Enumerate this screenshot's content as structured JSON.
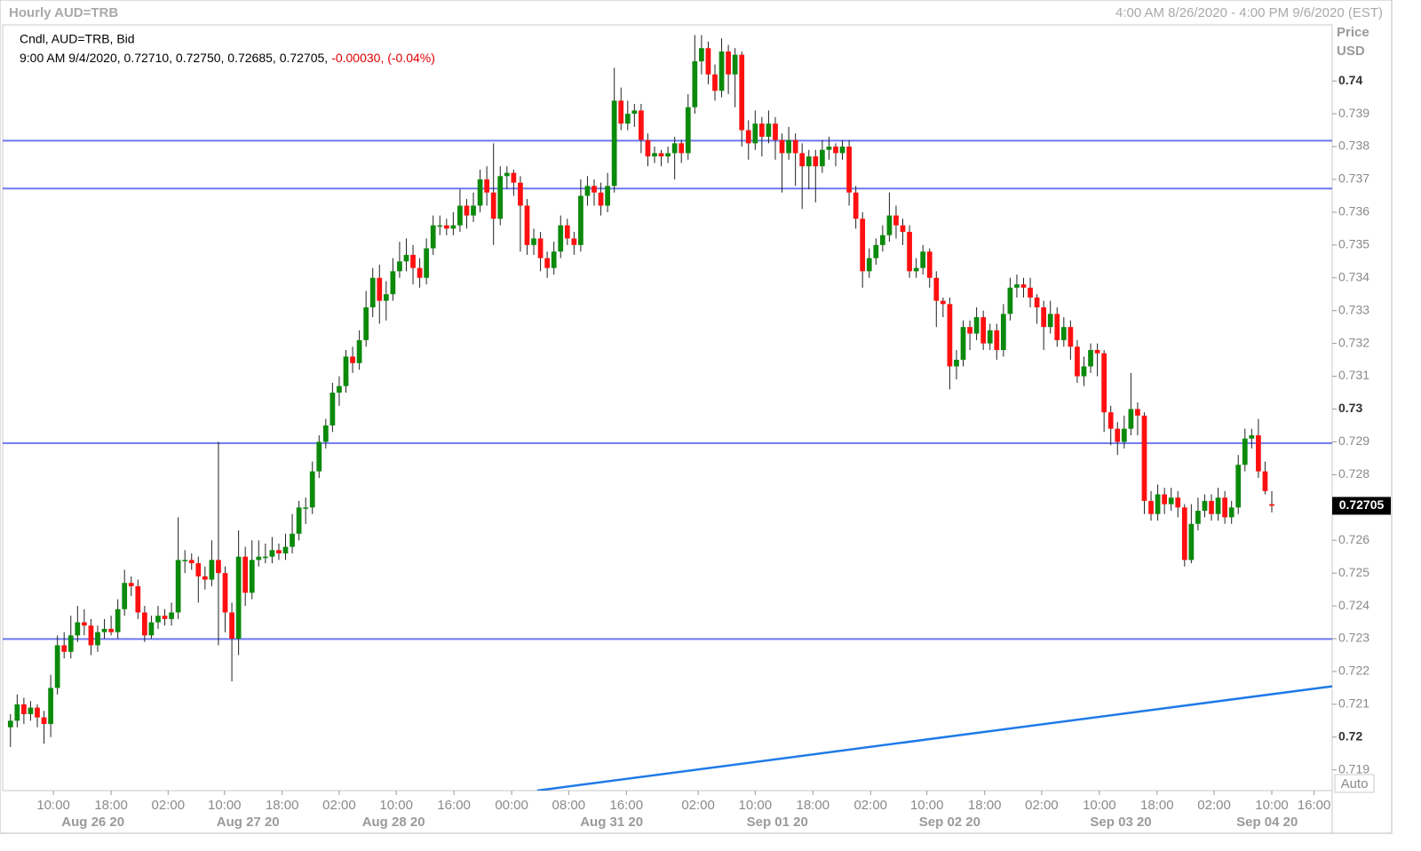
{
  "chart_data": {
    "type": "candlestick",
    "title": "Hourly AUD=TRB",
    "subtitle": "4:00 AM 8/26/2020 - 4:00 PM 9/6/2020 (EST)",
    "legend_title": "Cndl, AUD=TRB, Bid",
    "info": "9:00 AM 9/4/2020, 0.72710, 0.72750, 0.72685, 0.72705,",
    "change": "-0.00030, (-0.04%)",
    "y_axis_label": "Price",
    "y_axis_unit": "USD",
    "scale_mode": "Auto",
    "last_price": 0.72705,
    "up_color": "#0b8a0b",
    "down_color": "#ff1010",
    "wick_color": "#222222",
    "level_color": "#6e78f0",
    "trend_color": "#1f7ae8",
    "xlim": [
      -0.5,
      197
    ],
    "ylim": [
      0.71837,
      0.74171
    ],
    "yticks": [
      0.719,
      0.72,
      0.721,
      0.722,
      0.723,
      0.724,
      0.725,
      0.726,
      0.727,
      0.728,
      0.729,
      0.73,
      0.731,
      0.732,
      0.733,
      0.734,
      0.735,
      0.736,
      0.737,
      0.738,
      0.739,
      0.74
    ],
    "xticks": [
      {
        "value": 6.4,
        "label": "10:00"
      },
      {
        "value": 15,
        "label": "18:00"
      },
      {
        "value": 23.5,
        "label": "02:00"
      },
      {
        "value": 31.9,
        "label": "10:00"
      },
      {
        "value": 40.5,
        "label": "18:00"
      },
      {
        "value": 49,
        "label": "02:00"
      },
      {
        "value": 57.5,
        "label": "10:00"
      },
      {
        "value": 66.1,
        "label": "16:00"
      },
      {
        "value": 74.7,
        "label": "00:00"
      },
      {
        "value": 83.2,
        "label": "08:00"
      },
      {
        "value": 91.8,
        "label": "16:00"
      },
      {
        "value": 102.5,
        "label": "02:00"
      },
      {
        "value": 111,
        "label": "10:00"
      },
      {
        "value": 119.6,
        "label": "18:00"
      },
      {
        "value": 128.2,
        "label": "02:00"
      },
      {
        "value": 136.6,
        "label": "10:00"
      },
      {
        "value": 145.2,
        "label": "18:00"
      },
      {
        "value": 153.7,
        "label": "02:00"
      },
      {
        "value": 162.3,
        "label": "10:00"
      },
      {
        "value": 170.9,
        "label": "18:00"
      },
      {
        "value": 179.4,
        "label": "02:00"
      },
      {
        "value": 188,
        "label": "10:00"
      },
      {
        "value": 194.3,
        "label": "16:00"
      }
    ],
    "date_ticks": [
      {
        "value": 12.3,
        "label": "Aug 26 20"
      },
      {
        "value": 35.4,
        "label": "Aug 27 20"
      },
      {
        "value": 57.1,
        "label": "Aug 28 20"
      },
      {
        "value": 89.6,
        "label": "Aug 31 20"
      },
      {
        "value": 114.3,
        "label": "Sep 01 20"
      },
      {
        "value": 140,
        "label": "Sep 02 20"
      },
      {
        "value": 165.5,
        "label": "Sep 03 20"
      },
      {
        "value": 187.3,
        "label": "Sep 04 20"
      }
    ],
    "levels": [
      0.73818,
      0.73672,
      0.72896,
      0.72299
    ],
    "trendline": {
      "x": [
        78.5,
        197
      ],
      "y": [
        0.71837,
        0.72155
      ]
    },
    "ohlc": [
      [
        0.7203,
        0.7207,
        0.7197,
        0.7205
      ],
      [
        0.7205,
        0.7213,
        0.7203,
        0.721
      ],
      [
        0.721,
        0.7212,
        0.7204,
        0.7207
      ],
      [
        0.7207,
        0.7211,
        0.7205,
        0.7209
      ],
      [
        0.7209,
        0.721,
        0.7203,
        0.7206
      ],
      [
        0.7206,
        0.7208,
        0.7198,
        0.7204
      ],
      [
        0.7204,
        0.7219,
        0.72,
        0.7215
      ],
      [
        0.7215,
        0.7231,
        0.7213,
        0.7228
      ],
      [
        0.7228,
        0.7232,
        0.7224,
        0.7226
      ],
      [
        0.7226,
        0.7237,
        0.7224,
        0.7231
      ],
      [
        0.7231,
        0.724,
        0.7229,
        0.7235
      ],
      [
        0.7235,
        0.7239,
        0.7231,
        0.7234
      ],
      [
        0.7234,
        0.7236,
        0.7225,
        0.7228
      ],
      [
        0.7228,
        0.7234,
        0.7226,
        0.7232
      ],
      [
        0.7232,
        0.7236,
        0.723,
        0.7233
      ],
      [
        0.7233,
        0.7237,
        0.7231,
        0.7232
      ],
      [
        0.7232,
        0.7242,
        0.723,
        0.7239
      ],
      [
        0.7239,
        0.7251,
        0.7237,
        0.7247
      ],
      [
        0.7247,
        0.7249,
        0.7243,
        0.7246
      ],
      [
        0.7246,
        0.7248,
        0.7236,
        0.7238
      ],
      [
        0.7238,
        0.724,
        0.7229,
        0.7231
      ],
      [
        0.7231,
        0.7237,
        0.723,
        0.7235
      ],
      [
        0.7235,
        0.724,
        0.7233,
        0.7237
      ],
      [
        0.7237,
        0.7239,
        0.7234,
        0.7236
      ],
      [
        0.7236,
        0.7241,
        0.7234,
        0.7238
      ],
      [
        0.7238,
        0.7267,
        0.7236,
        0.7254
      ],
      [
        0.7254,
        0.7257,
        0.725,
        0.7254
      ],
      [
        0.7254,
        0.7256,
        0.7251,
        0.7253
      ],
      [
        0.7253,
        0.7255,
        0.7241,
        0.7249
      ],
      [
        0.7249,
        0.7252,
        0.7245,
        0.7248
      ],
      [
        0.7248,
        0.726,
        0.7246,
        0.7254
      ],
      [
        0.7254,
        0.729,
        0.7228,
        0.725
      ],
      [
        0.725,
        0.7252,
        0.7232,
        0.7238
      ],
      [
        0.7238,
        0.7241,
        0.7217,
        0.723
      ],
      [
        0.723,
        0.7263,
        0.7225,
        0.7255
      ],
      [
        0.7255,
        0.7258,
        0.724,
        0.7244
      ],
      [
        0.7244,
        0.726,
        0.7242,
        0.7254
      ],
      [
        0.7254,
        0.726,
        0.7252,
        0.7255
      ],
      [
        0.7255,
        0.7259,
        0.7253,
        0.7255
      ],
      [
        0.7255,
        0.7261,
        0.7253,
        0.7257
      ],
      [
        0.7257,
        0.7259,
        0.7254,
        0.7256
      ],
      [
        0.7256,
        0.7262,
        0.7254,
        0.7258
      ],
      [
        0.7258,
        0.7268,
        0.7256,
        0.7262
      ],
      [
        0.7262,
        0.7272,
        0.726,
        0.727
      ],
      [
        0.727,
        0.7273,
        0.7265,
        0.727
      ],
      [
        0.727,
        0.7284,
        0.7268,
        0.7281
      ],
      [
        0.7281,
        0.7292,
        0.7279,
        0.729
      ],
      [
        0.729,
        0.7297,
        0.7288,
        0.7295
      ],
      [
        0.7295,
        0.7308,
        0.7293,
        0.7305
      ],
      [
        0.7305,
        0.731,
        0.7301,
        0.7307
      ],
      [
        0.7307,
        0.7318,
        0.7305,
        0.7316
      ],
      [
        0.7316,
        0.7319,
        0.7311,
        0.7314
      ],
      [
        0.7314,
        0.7324,
        0.7312,
        0.7321
      ],
      [
        0.7321,
        0.7336,
        0.7319,
        0.7331
      ],
      [
        0.7331,
        0.7343,
        0.7328,
        0.734
      ],
      [
        0.734,
        0.7344,
        0.7326,
        0.7333
      ],
      [
        0.7333,
        0.7339,
        0.7327,
        0.7335
      ],
      [
        0.7335,
        0.7346,
        0.7333,
        0.7342
      ],
      [
        0.7342,
        0.7351,
        0.734,
        0.7345
      ],
      [
        0.7345,
        0.7352,
        0.7342,
        0.7347
      ],
      [
        0.7347,
        0.735,
        0.7338,
        0.7343
      ],
      [
        0.7343,
        0.7346,
        0.7337,
        0.734
      ],
      [
        0.734,
        0.7352,
        0.7338,
        0.7349
      ],
      [
        0.7349,
        0.7359,
        0.7347,
        0.7356
      ],
      [
        0.7356,
        0.7359,
        0.7353,
        0.7356
      ],
      [
        0.7356,
        0.7358,
        0.7353,
        0.7355
      ],
      [
        0.7355,
        0.736,
        0.7353,
        0.7356
      ],
      [
        0.7356,
        0.7367,
        0.7354,
        0.7362
      ],
      [
        0.7362,
        0.7364,
        0.7355,
        0.7359
      ],
      [
        0.7359,
        0.7366,
        0.7357,
        0.7362
      ],
      [
        0.7362,
        0.7373,
        0.736,
        0.737
      ],
      [
        0.737,
        0.7374,
        0.7362,
        0.7366
      ],
      [
        0.7366,
        0.7381,
        0.735,
        0.7358
      ],
      [
        0.7358,
        0.7374,
        0.7356,
        0.7371
      ],
      [
        0.7371,
        0.7374,
        0.7367,
        0.7372
      ],
      [
        0.7372,
        0.7373,
        0.7365,
        0.7369
      ],
      [
        0.7369,
        0.7371,
        0.7348,
        0.7362
      ],
      [
        0.7362,
        0.7364,
        0.7347,
        0.735
      ],
      [
        0.735,
        0.7355,
        0.7347,
        0.7352
      ],
      [
        0.7352,
        0.7354,
        0.7342,
        0.7346
      ],
      [
        0.7346,
        0.7348,
        0.734,
        0.7343
      ],
      [
        0.7343,
        0.7351,
        0.7341,
        0.7348
      ],
      [
        0.7348,
        0.7359,
        0.7346,
        0.7356
      ],
      [
        0.7356,
        0.7358,
        0.735,
        0.7352
      ],
      [
        0.7352,
        0.7354,
        0.7347,
        0.735
      ],
      [
        0.735,
        0.737,
        0.7348,
        0.7365
      ],
      [
        0.7365,
        0.7371,
        0.7362,
        0.7368
      ],
      [
        0.7368,
        0.737,
        0.7362,
        0.7366
      ],
      [
        0.7366,
        0.7369,
        0.7359,
        0.7362
      ],
      [
        0.7362,
        0.7372,
        0.736,
        0.7368
      ],
      [
        0.7368,
        0.7404,
        0.7366,
        0.7394
      ],
      [
        0.7394,
        0.7398,
        0.7385,
        0.7387
      ],
      [
        0.7387,
        0.7394,
        0.7385,
        0.739
      ],
      [
        0.739,
        0.7393,
        0.7386,
        0.7391
      ],
      [
        0.7391,
        0.7393,
        0.7378,
        0.7382
      ],
      [
        0.7382,
        0.7384,
        0.7374,
        0.7377
      ],
      [
        0.7377,
        0.738,
        0.7375,
        0.7378
      ],
      [
        0.7378,
        0.7379,
        0.7374,
        0.7377
      ],
      [
        0.7377,
        0.738,
        0.7375,
        0.7378
      ],
      [
        0.7378,
        0.7383,
        0.737,
        0.7381
      ],
      [
        0.7381,
        0.7382,
        0.7375,
        0.7378
      ],
      [
        0.7378,
        0.7396,
        0.7376,
        0.7392
      ],
      [
        0.7392,
        0.7414,
        0.739,
        0.7406
      ],
      [
        0.7406,
        0.7414,
        0.7402,
        0.741
      ],
      [
        0.741,
        0.7412,
        0.7399,
        0.7402
      ],
      [
        0.7402,
        0.7405,
        0.7394,
        0.7397
      ],
      [
        0.7397,
        0.7413,
        0.7395,
        0.7409
      ],
      [
        0.7409,
        0.7411,
        0.7396,
        0.7402
      ],
      [
        0.7402,
        0.741,
        0.7392,
        0.7408
      ],
      [
        0.7408,
        0.7409,
        0.738,
        0.7385
      ],
      [
        0.7385,
        0.7388,
        0.7376,
        0.7381
      ],
      [
        0.7381,
        0.7391,
        0.7379,
        0.7387
      ],
      [
        0.7387,
        0.7389,
        0.7377,
        0.7383
      ],
      [
        0.7383,
        0.7391,
        0.7381,
        0.7387
      ],
      [
        0.7387,
        0.7389,
        0.7376,
        0.7382
      ],
      [
        0.7382,
        0.7384,
        0.7366,
        0.7378
      ],
      [
        0.7378,
        0.7386,
        0.7376,
        0.7382
      ],
      [
        0.7382,
        0.7384,
        0.7368,
        0.7378
      ],
      [
        0.7378,
        0.7381,
        0.7361,
        0.7374
      ],
      [
        0.7374,
        0.7379,
        0.7367,
        0.7377
      ],
      [
        0.7377,
        0.7379,
        0.7363,
        0.7374
      ],
      [
        0.7374,
        0.7382,
        0.7372,
        0.7379
      ],
      [
        0.7379,
        0.7383,
        0.7376,
        0.738
      ],
      [
        0.738,
        0.7381,
        0.7374,
        0.7378
      ],
      [
        0.7378,
        0.7382,
        0.7376,
        0.738
      ],
      [
        0.738,
        0.7382,
        0.7362,
        0.7366
      ],
      [
        0.7366,
        0.7368,
        0.7355,
        0.7358
      ],
      [
        0.7358,
        0.736,
        0.7337,
        0.7342
      ],
      [
        0.7342,
        0.7349,
        0.734,
        0.7346
      ],
      [
        0.7346,
        0.7352,
        0.7344,
        0.735
      ],
      [
        0.735,
        0.7356,
        0.7348,
        0.7353
      ],
      [
        0.7353,
        0.7366,
        0.7351,
        0.7359
      ],
      [
        0.7359,
        0.7362,
        0.7352,
        0.7356
      ],
      [
        0.7356,
        0.7358,
        0.735,
        0.7354
      ],
      [
        0.7354,
        0.7356,
        0.734,
        0.7342
      ],
      [
        0.7342,
        0.7346,
        0.734,
        0.7343
      ],
      [
        0.7343,
        0.735,
        0.7341,
        0.7348
      ],
      [
        0.7348,
        0.7349,
        0.7337,
        0.734
      ],
      [
        0.734,
        0.7342,
        0.7325,
        0.7333
      ],
      [
        0.7333,
        0.7334,
        0.7328,
        0.7332
      ],
      [
        0.7332,
        0.7334,
        0.7306,
        0.7313
      ],
      [
        0.7313,
        0.7318,
        0.7309,
        0.7315
      ],
      [
        0.7315,
        0.7327,
        0.7313,
        0.7325
      ],
      [
        0.7325,
        0.7327,
        0.7318,
        0.7323
      ],
      [
        0.7323,
        0.7331,
        0.7321,
        0.7328
      ],
      [
        0.7328,
        0.733,
        0.7318,
        0.732
      ],
      [
        0.732,
        0.7326,
        0.7318,
        0.7324
      ],
      [
        0.7324,
        0.7326,
        0.7315,
        0.7318
      ],
      [
        0.7318,
        0.7332,
        0.7316,
        0.7329
      ],
      [
        0.7329,
        0.734,
        0.7327,
        0.7337
      ],
      [
        0.7337,
        0.7341,
        0.7334,
        0.7338
      ],
      [
        0.7338,
        0.734,
        0.7334,
        0.7337
      ],
      [
        0.7337,
        0.734,
        0.7331,
        0.7334
      ],
      [
        0.7334,
        0.7335,
        0.7326,
        0.7331
      ],
      [
        0.7331,
        0.7333,
        0.7318,
        0.7325
      ],
      [
        0.7325,
        0.7333,
        0.7323,
        0.7329
      ],
      [
        0.7329,
        0.7331,
        0.7319,
        0.7321
      ],
      [
        0.7321,
        0.7328,
        0.7319,
        0.7325
      ],
      [
        0.7325,
        0.7327,
        0.7315,
        0.7319
      ],
      [
        0.7319,
        0.7321,
        0.7308,
        0.731
      ],
      [
        0.731,
        0.7316,
        0.7307,
        0.7313
      ],
      [
        0.7313,
        0.732,
        0.7311,
        0.7318
      ],
      [
        0.7318,
        0.732,
        0.731,
        0.7317
      ],
      [
        0.7317,
        0.7318,
        0.7293,
        0.7299
      ],
      [
        0.7299,
        0.7301,
        0.7289,
        0.7294
      ],
      [
        0.7294,
        0.7296,
        0.7286,
        0.729
      ],
      [
        0.729,
        0.7298,
        0.7288,
        0.7294
      ],
      [
        0.7294,
        0.7311,
        0.7292,
        0.73
      ],
      [
        0.73,
        0.7302,
        0.7292,
        0.7298
      ],
      [
        0.7298,
        0.7299,
        0.7268,
        0.7272
      ],
      [
        0.7272,
        0.7275,
        0.7266,
        0.7268
      ],
      [
        0.7268,
        0.7277,
        0.7266,
        0.7274
      ],
      [
        0.7274,
        0.7276,
        0.7268,
        0.7271
      ],
      [
        0.7271,
        0.7276,
        0.7269,
        0.7273
      ],
      [
        0.7273,
        0.7275,
        0.7267,
        0.727
      ],
      [
        0.727,
        0.7271,
        0.7252,
        0.7254
      ],
      [
        0.7254,
        0.7271,
        0.7253,
        0.7265
      ],
      [
        0.7265,
        0.7273,
        0.7263,
        0.7269
      ],
      [
        0.7269,
        0.7274,
        0.7267,
        0.7272
      ],
      [
        0.7272,
        0.7274,
        0.7266,
        0.7268
      ],
      [
        0.7268,
        0.7276,
        0.7266,
        0.7273
      ],
      [
        0.7273,
        0.7275,
        0.7265,
        0.7267
      ],
      [
        0.7267,
        0.7272,
        0.7265,
        0.727
      ],
      [
        0.727,
        0.7286,
        0.7268,
        0.7283
      ],
      [
        0.7283,
        0.7294,
        0.7281,
        0.7291
      ],
      [
        0.7291,
        0.7294,
        0.7288,
        0.7292
      ],
      [
        0.7292,
        0.7297,
        0.7279,
        0.7281
      ],
      [
        0.7281,
        0.7284,
        0.7274,
        0.7275
      ],
      [
        0.7271,
        0.7275,
        0.72685,
        0.72705
      ]
    ]
  }
}
